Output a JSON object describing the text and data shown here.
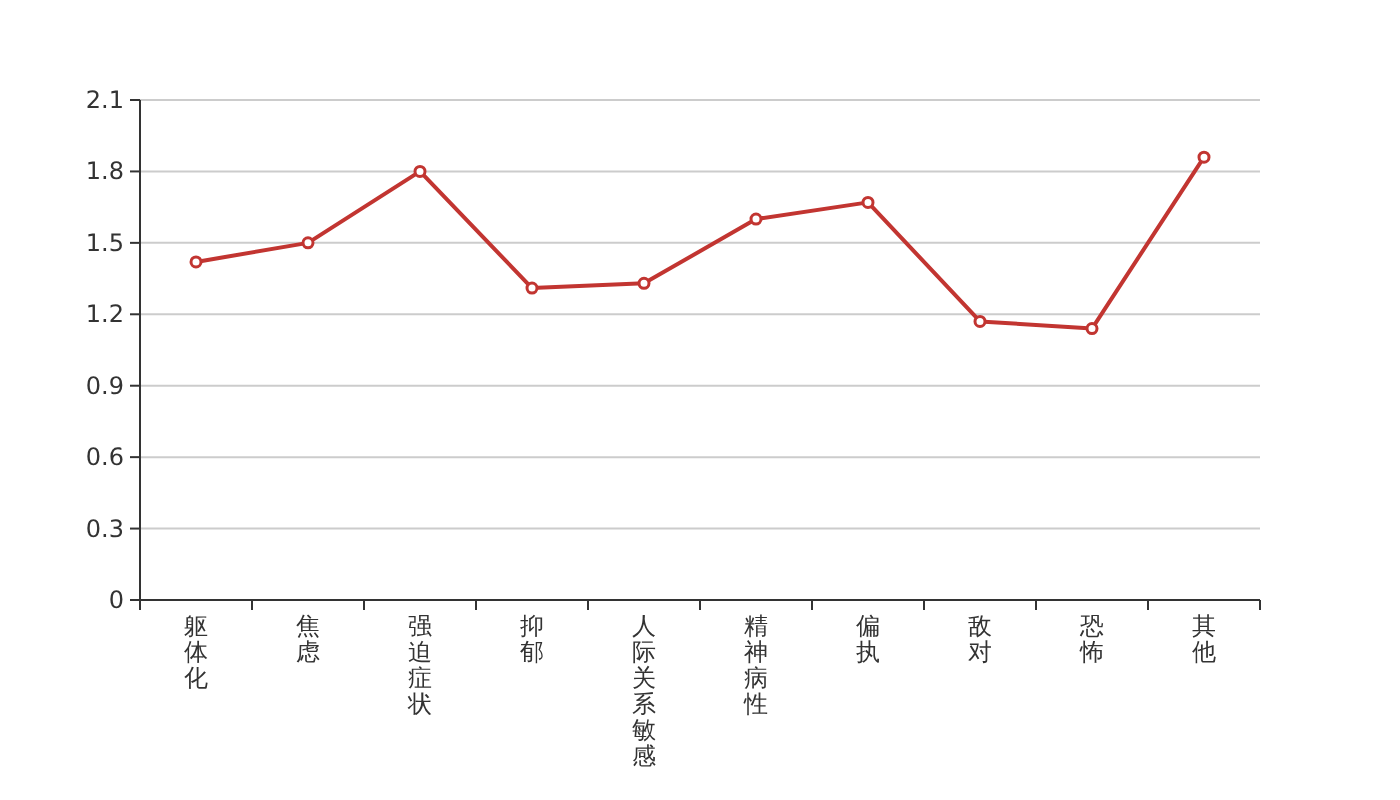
{
  "chart_data": {
    "type": "line",
    "categories": [
      "躯体化",
      "焦虑",
      "强迫症状",
      "抑郁",
      "人际关系敏感",
      "精神病性",
      "偏执",
      "敌对",
      "恐怖",
      "其他"
    ],
    "series": [
      {
        "color": "#c23531",
        "values": [
          1.42,
          1.5,
          1.8,
          1.31,
          1.33,
          1.6,
          1.67,
          1.17,
          1.14,
          1.86
        ]
      }
    ],
    "ylim": [
      0,
      2.1
    ],
    "yticks": [
      0,
      0.3,
      0.6,
      0.9,
      1.2,
      1.5,
      1.8,
      2.1
    ],
    "grid": "y",
    "marker": "circle",
    "line_style": "solid"
  }
}
